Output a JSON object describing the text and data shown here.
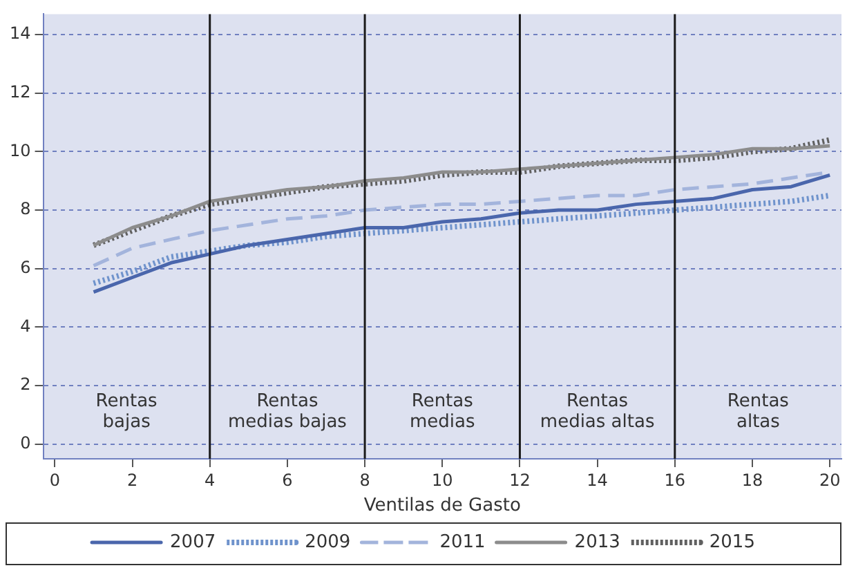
{
  "chart_data": {
    "type": "line",
    "xlabel": "Ventilas de Gasto",
    "x": [
      1,
      2,
      3,
      4,
      5,
      6,
      7,
      8,
      9,
      10,
      11,
      12,
      13,
      14,
      15,
      16,
      17,
      18,
      19,
      20
    ],
    "xlim": [
      -0.3,
      20.3
    ],
    "xticks": [
      0,
      2,
      4,
      6,
      8,
      10,
      12,
      14,
      16,
      18,
      20
    ],
    "ylim": [
      -0.5,
      14.7
    ],
    "yticks": [
      0,
      2,
      4,
      6,
      8,
      10,
      12,
      14
    ],
    "grid": "y",
    "legend": "bottom",
    "marker": "none",
    "series": [
      {
        "name": "2007",
        "color": "#4a66ac",
        "line_style": "solid",
        "values": [
          5.2,
          5.7,
          6.2,
          6.5,
          6.8,
          7.0,
          7.2,
          7.4,
          7.4,
          7.6,
          7.7,
          7.9,
          8.0,
          8.0,
          8.2,
          8.3,
          8.4,
          8.7,
          8.8,
          9.2
        ]
      },
      {
        "name": "2009",
        "color": "#6f93cc",
        "line_style": "dotted",
        "values": [
          5.5,
          5.9,
          6.4,
          6.6,
          6.8,
          6.9,
          7.1,
          7.2,
          7.3,
          7.4,
          7.5,
          7.6,
          7.7,
          7.8,
          7.9,
          8.0,
          8.1,
          8.2,
          8.3,
          8.5
        ]
      },
      {
        "name": "2011",
        "color": "#a3b4dc",
        "line_style": "dashed",
        "values": [
          6.1,
          6.7,
          7.0,
          7.3,
          7.5,
          7.7,
          7.8,
          8.0,
          8.1,
          8.2,
          8.2,
          8.3,
          8.4,
          8.5,
          8.5,
          8.7,
          8.8,
          8.9,
          9.1,
          9.3
        ]
      },
      {
        "name": "2013",
        "color": "#8c8c8c",
        "line_style": "solid",
        "values": [
          6.8,
          7.4,
          7.8,
          8.3,
          8.5,
          8.7,
          8.8,
          9.0,
          9.1,
          9.3,
          9.3,
          9.4,
          9.5,
          9.6,
          9.7,
          9.8,
          9.9,
          10.1,
          10.1,
          10.2
        ]
      },
      {
        "name": "2015",
        "color": "#606060",
        "line_style": "dotted",
        "values": [
          6.8,
          7.3,
          7.8,
          8.2,
          8.4,
          8.6,
          8.8,
          8.9,
          9.0,
          9.2,
          9.3,
          9.3,
          9.5,
          9.6,
          9.7,
          9.7,
          9.8,
          10.0,
          10.1,
          10.4
        ]
      }
    ],
    "ref_lines": [
      {
        "axis": "x",
        "value": 4,
        "color": "#1a1a1a"
      },
      {
        "axis": "x",
        "value": 8,
        "color": "#1a1a1a"
      },
      {
        "axis": "x",
        "value": 12,
        "color": "#1a1a1a"
      },
      {
        "axis": "x",
        "value": 16,
        "color": "#1a1a1a"
      }
    ],
    "annotations": [
      "Rentas\nbajas",
      "Rentas\nmedias bajas",
      "Rentas\nmedias",
      "Rentas\nmedias altas",
      "Rentas\naltas"
    ]
  }
}
